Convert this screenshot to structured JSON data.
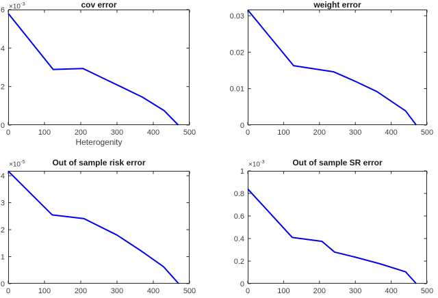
{
  "figure": {
    "background": "#ffffff",
    "line_color": "#0000f0",
    "axis_color": "#262626",
    "tick_label_color": "#3d3d3d",
    "title_color": "#1a1a1a",
    "line_width": 2
  },
  "chart_data": [
    {
      "type": "line",
      "title": "cov error",
      "xlabel": "Heterogenity",
      "ylabel": "",
      "y_exp_base": "×10",
      "y_exp_sup": "-3",
      "y_unit_scale": "1e-3",
      "xlim": [
        0,
        500
      ],
      "ylim": [
        0,
        6
      ],
      "xticks": [
        0,
        100,
        200,
        300,
        400,
        500
      ],
      "yticks": [
        0,
        2,
        4,
        6
      ],
      "grid": false,
      "legend": null,
      "x": [
        0,
        124,
        206,
        260,
        310,
        370,
        430,
        469
      ],
      "y": [
        5.8,
        2.89,
        2.94,
        2.45,
        2.0,
        1.45,
        0.75,
        0
      ]
    },
    {
      "type": "line",
      "title": "weight error",
      "xlabel": "",
      "ylabel": "",
      "xlim": [
        0,
        500
      ],
      "ylim": [
        0,
        0.0317
      ],
      "xticks": [
        0,
        100,
        200,
        300,
        400,
        500
      ],
      "yticks": [
        0,
        0.01,
        0.02,
        0.03
      ],
      "grid": false,
      "legend": null,
      "x": [
        0,
        128,
        240,
        300,
        360,
        440,
        470
      ],
      "y": [
        0.0316,
        0.0163,
        0.0146,
        0.012,
        0.0092,
        0.0039,
        0
      ]
    },
    {
      "type": "line",
      "title": "Out of sample risk error",
      "xlabel": "",
      "ylabel": "",
      "y_exp_base": "×10",
      "y_exp_sup": "-5",
      "y_unit_scale": "1e-5",
      "xlim": [
        0,
        500
      ],
      "ylim": [
        0,
        4.18
      ],
      "xticks": [
        0,
        100,
        200,
        300,
        400,
        500
      ],
      "yticks": [
        0,
        1,
        2,
        3,
        4
      ],
      "grid": false,
      "legend": null,
      "x": [
        0,
        121,
        209,
        300,
        368,
        428,
        470
      ],
      "y": [
        4.17,
        2.55,
        2.41,
        1.8,
        1.2,
        0.63,
        0
      ]
    },
    {
      "type": "line",
      "title": "Out of sample SR error",
      "xlabel": "",
      "ylabel": "",
      "y_exp_base": "×10",
      "y_exp_sup": "-3",
      "y_unit_scale": "1e-3",
      "xlim": [
        0,
        500
      ],
      "ylim": [
        0,
        1
      ],
      "xticks": [
        0,
        100,
        200,
        300,
        400,
        500
      ],
      "yticks": [
        0,
        0.2,
        0.4,
        0.6,
        0.8,
        1
      ],
      "grid": false,
      "legend": null,
      "x": [
        0,
        124,
        207,
        242,
        300,
        370,
        440,
        470
      ],
      "y": [
        0.84,
        0.41,
        0.375,
        0.28,
        0.235,
        0.175,
        0.105,
        0
      ]
    }
  ]
}
